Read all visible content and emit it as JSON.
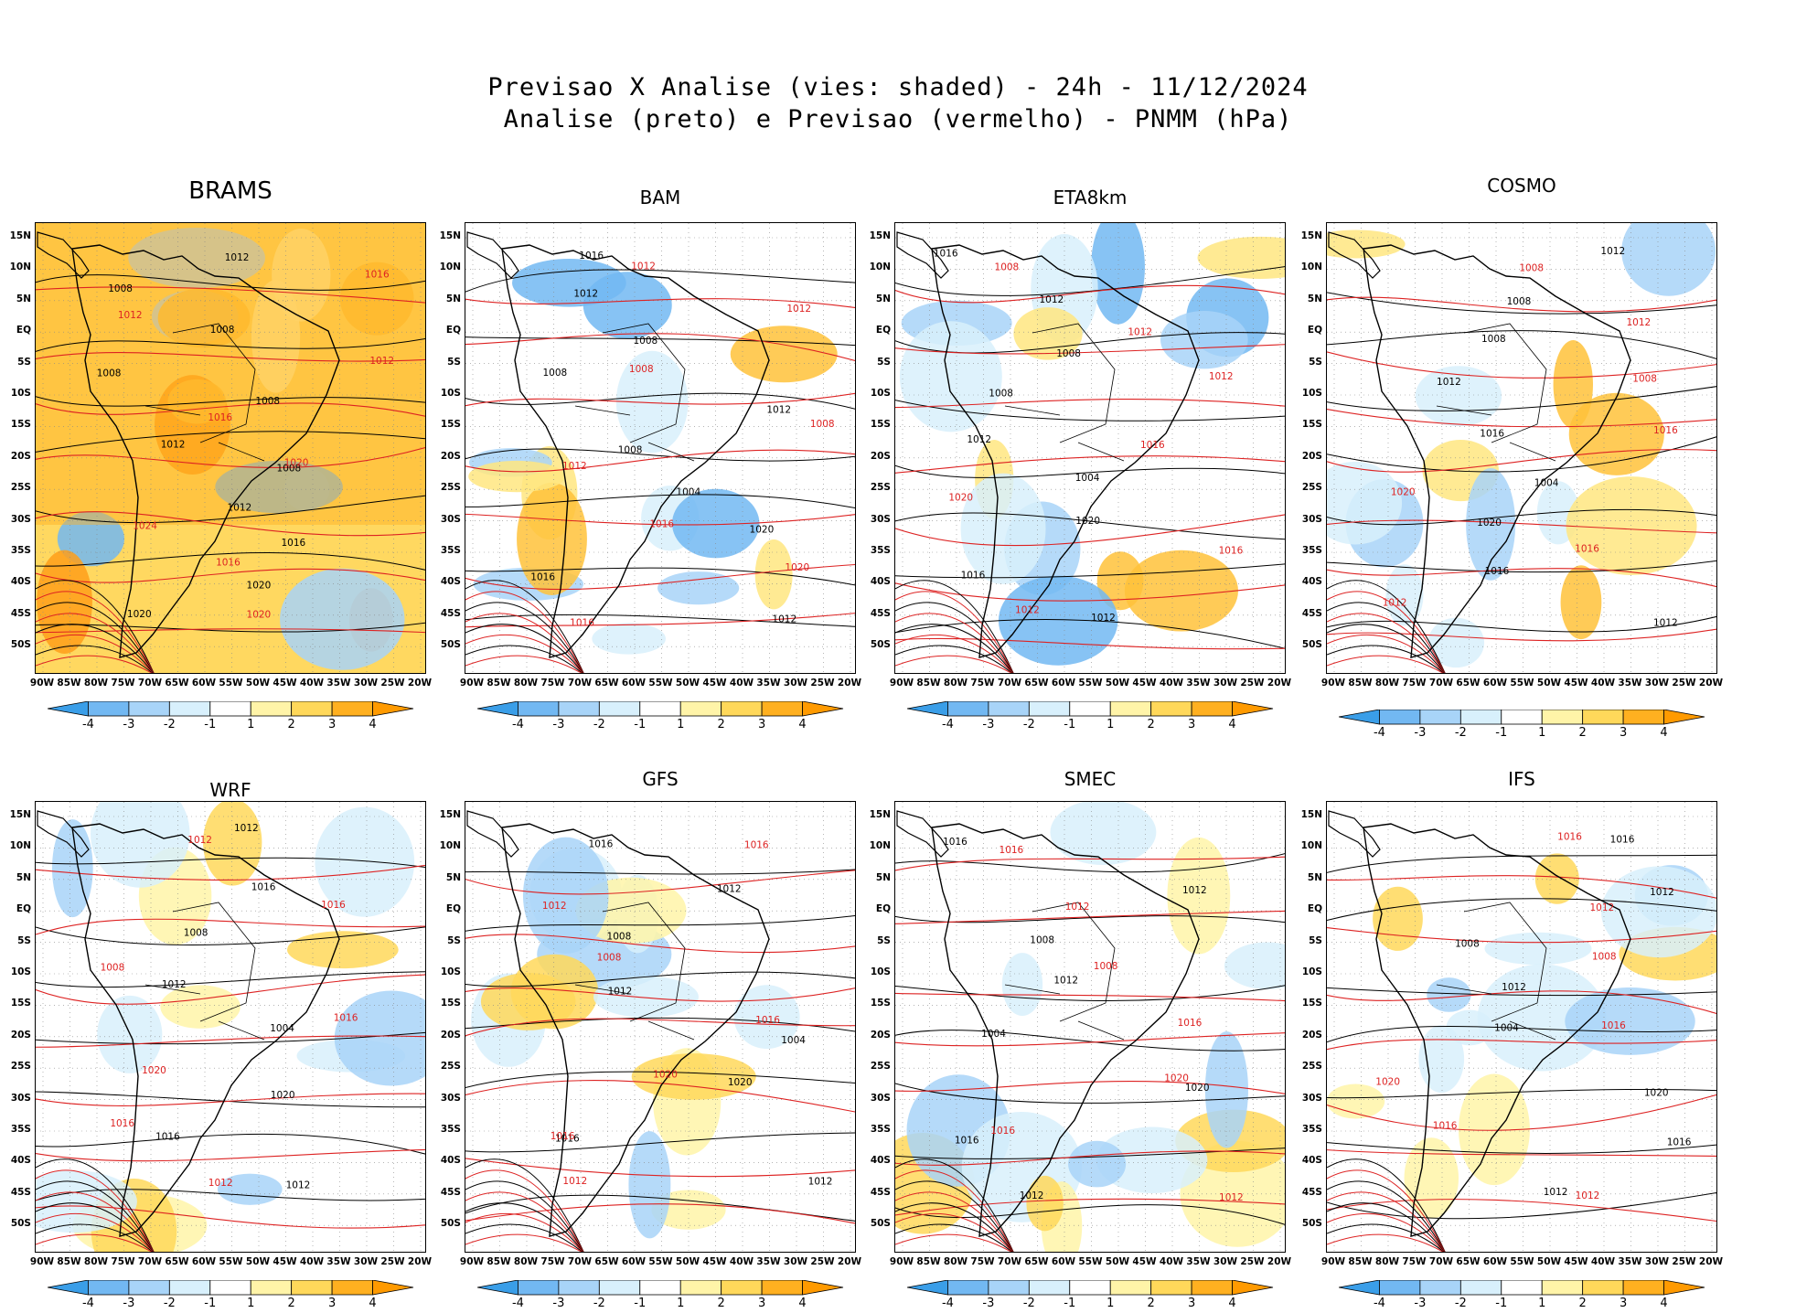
{
  "title_line1": "Previsao X Analise (vies: shaded) - 24h - 11/12/2024",
  "title_line2": "Analise (preto) e Previsao (vermelho) - PNMM (hPa)",
  "lat_labels": [
    "15N",
    "10N",
    "5N",
    "EQ",
    "5S",
    "10S",
    "15S",
    "20S",
    "25S",
    "30S",
    "35S",
    "40S",
    "45S",
    "50S"
  ],
  "lon_labels": [
    "90W",
    "85W",
    "80W",
    "75W",
    "70W",
    "65W",
    "60W",
    "55W",
    "50W",
    "45W",
    "40W",
    "35W",
    "30W",
    "25W",
    "20W"
  ],
  "colorbar_labels": [
    "-4",
    "-3",
    "-2",
    "-1",
    "1",
    "2",
    "3",
    "4"
  ],
  "colors": {
    "bias": [
      "#3a9ee8",
      "#72b8f2",
      "#a8d4f8",
      "#d8f0fc",
      "#ffffff",
      "#fff4a8",
      "#ffd85a",
      "#ffb020",
      "#ff9a00"
    ],
    "analysis_contour": "#000000",
    "forecast_contour": "#dd2222"
  },
  "panels": [
    {
      "model": "BRAMS",
      "bias": "warm",
      "isobars_black": [
        "1012",
        "1008",
        "1008",
        "1008",
        "1008",
        "1012",
        "1008",
        "1012",
        "1016",
        "1020",
        "1020"
      ],
      "isobars_red": [
        "1016",
        "1012",
        "1012",
        "1016",
        "1020",
        "1024",
        "1016",
        "1020"
      ]
    },
    {
      "model": "BAM",
      "bias": "cold",
      "isobars_black": [
        "1016",
        "1012",
        "1008",
        "1008",
        "1012",
        "1008",
        "1004",
        "1020",
        "1016",
        "1012"
      ],
      "isobars_red": [
        "1012",
        "1012",
        "1008",
        "1008",
        "1012",
        "1016",
        "1020",
        "1016"
      ]
    },
    {
      "model": "ETA8km",
      "bias": "cold",
      "isobars_black": [
        "1016",
        "1012",
        "1008",
        "1008",
        "1012",
        "1004",
        "1020",
        "1016",
        "1012"
      ],
      "isobars_red": [
        "1008",
        "1012",
        "1012",
        "1016",
        "1020",
        "1016",
        "1012"
      ]
    },
    {
      "model": "COSMO",
      "bias": "neutral",
      "isobars_black": [
        "1012",
        "1008",
        "1008",
        "1012",
        "1016",
        "1004",
        "1020",
        "1016",
        "1012"
      ],
      "isobars_red": [
        "1008",
        "1012",
        "1008",
        "1016",
        "1020",
        "1016",
        "1012"
      ]
    },
    {
      "model": "WRF",
      "bias": "mixed",
      "isobars_black": [
        "1012",
        "1016",
        "1008",
        "1012",
        "1004",
        "1020",
        "1016",
        "1012"
      ],
      "isobars_red": [
        "1012",
        "1016",
        "1008",
        "1016",
        "1020",
        "1016",
        "1012"
      ]
    },
    {
      "model": "GFS",
      "bias": "mixed",
      "isobars_black": [
        "1016",
        "1012",
        "1008",
        "1012",
        "1004",
        "1020",
        "1016",
        "1012"
      ],
      "isobars_red": [
        "1016",
        "1012",
        "1008",
        "1016",
        "1020",
        "1016",
        "1012"
      ]
    },
    {
      "model": "SMEC",
      "bias": "mixed",
      "isobars_black": [
        "1016",
        "1012",
        "1008",
        "1012",
        "1004",
        "1020",
        "1016",
        "1012"
      ],
      "isobars_red": [
        "1016",
        "1012",
        "1008",
        "1016",
        "1020",
        "1016",
        "1012"
      ]
    },
    {
      "model": "IFS",
      "bias": "mixed",
      "isobars_black": [
        "1016",
        "1012",
        "1008",
        "1012",
        "1004",
        "1020",
        "1016",
        "1012"
      ],
      "isobars_red": [
        "1016",
        "1012",
        "1008",
        "1016",
        "1020",
        "1016",
        "1012"
      ]
    }
  ]
}
